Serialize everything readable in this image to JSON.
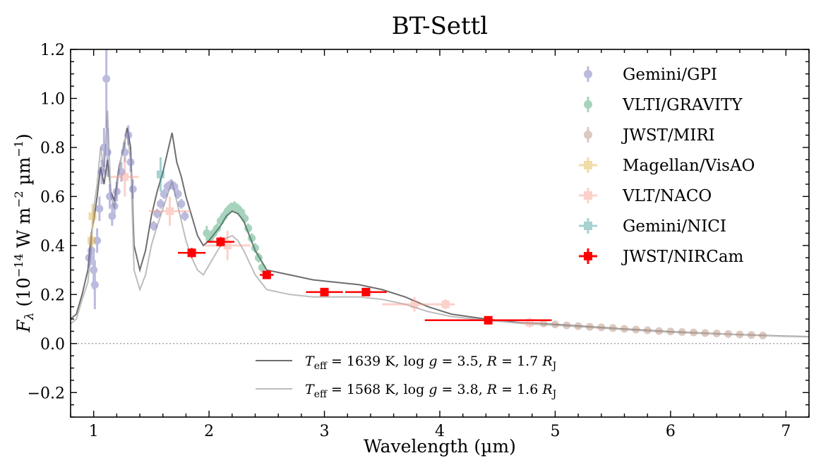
{
  "chart_data": {
    "type": "scatter",
    "title": "BT-Settl",
    "xlabel": "Wavelength (µm)",
    "ylabel_parts": {
      "symbol": "F",
      "subscript": "λ",
      "open": " (10",
      "exponent": "−14",
      "units": " W m",
      "exp2": "−2",
      "units2": " µm",
      "exp3": "−1",
      "close": ")"
    },
    "xlim": [
      0.8,
      7.2
    ],
    "ylim": [
      -0.3,
      1.2
    ],
    "xticks": [
      1,
      2,
      3,
      4,
      5,
      6,
      7
    ],
    "yticks": [
      -0.2,
      0.0,
      0.2,
      0.4,
      0.6,
      0.8,
      1.0,
      1.2
    ],
    "ytick_labels": [
      "−0.2",
      "0.0",
      "0.2",
      "0.4",
      "0.6",
      "0.8",
      "1.0",
      "1.2"
    ],
    "grid": false,
    "zero_line": true,
    "legend_position": "upper-right",
    "series": [
      {
        "name": "Gemini/GPI",
        "color": "#6b69b8",
        "marker": "circle",
        "points": [
          [
            0.96,
            0.35,
            0.04
          ],
          [
            0.98,
            0.38,
            0.06
          ],
          [
            1.0,
            0.3,
            0.08
          ],
          [
            1.01,
            0.24,
            0.1
          ],
          [
            1.03,
            0.42,
            0.05
          ],
          [
            1.05,
            0.55,
            0.05
          ],
          [
            1.07,
            0.7,
            0.05
          ],
          [
            1.09,
            0.8,
            0.08
          ],
          [
            1.11,
            1.08,
            0.2
          ],
          [
            1.12,
            0.78,
            0.1
          ],
          [
            1.14,
            0.6,
            0.05
          ],
          [
            1.16,
            0.52,
            0.04
          ],
          [
            1.18,
            0.56,
            0.04
          ],
          [
            1.2,
            0.62,
            0.04
          ],
          [
            1.24,
            0.7,
            0.04
          ],
          [
            1.27,
            0.78,
            0.04
          ],
          [
            1.3,
            0.85,
            0.04
          ],
          [
            1.32,
            0.74,
            0.04
          ],
          [
            1.34,
            0.63,
            0.04
          ],
          [
            1.52,
            0.48,
            0.02
          ],
          [
            1.55,
            0.53,
            0.02
          ],
          [
            1.58,
            0.57,
            0.02
          ],
          [
            1.61,
            0.61,
            0.02
          ],
          [
            1.64,
            0.64,
            0.02
          ],
          [
            1.67,
            0.65,
            0.02
          ],
          [
            1.7,
            0.64,
            0.02
          ],
          [
            1.73,
            0.61,
            0.02
          ],
          [
            1.76,
            0.57,
            0.02
          ],
          [
            1.79,
            0.52,
            0.02
          ]
        ]
      },
      {
        "name": "VLTI/GRAVITY",
        "color": "#3e9e6e",
        "marker": "circle",
        "points": [
          [
            1.98,
            0.45,
            0.03
          ],
          [
            2.01,
            0.43,
            0.02
          ],
          [
            2.04,
            0.45,
            0.02
          ],
          [
            2.07,
            0.47,
            0.02
          ],
          [
            2.1,
            0.5,
            0.02
          ],
          [
            2.13,
            0.52,
            0.02
          ],
          [
            2.16,
            0.54,
            0.02
          ],
          [
            2.19,
            0.555,
            0.02
          ],
          [
            2.22,
            0.56,
            0.02
          ],
          [
            2.25,
            0.55,
            0.02
          ],
          [
            2.28,
            0.535,
            0.02
          ],
          [
            2.31,
            0.51,
            0.02
          ],
          [
            2.34,
            0.47,
            0.02
          ],
          [
            2.37,
            0.43,
            0.02
          ],
          [
            2.4,
            0.39,
            0.02
          ],
          [
            2.43,
            0.35,
            0.02
          ],
          [
            2.46,
            0.31,
            0.02
          ]
        ]
      },
      {
        "name": "JWST/MIRI",
        "color": "#b08a76",
        "marker": "circle",
        "points": [
          [
            4.9,
            0.082,
            0.004
          ],
          [
            5.0,
            0.078,
            0.004
          ],
          [
            5.1,
            0.074,
            0.004
          ],
          [
            5.2,
            0.071,
            0.004
          ],
          [
            5.3,
            0.068,
            0.004
          ],
          [
            5.4,
            0.066,
            0.004
          ],
          [
            5.5,
            0.063,
            0.004
          ],
          [
            5.6,
            0.06,
            0.004
          ],
          [
            5.7,
            0.057,
            0.004
          ],
          [
            5.8,
            0.054,
            0.004
          ],
          [
            5.9,
            0.051,
            0.004
          ],
          [
            6.0,
            0.049,
            0.004
          ],
          [
            6.1,
            0.047,
            0.004
          ],
          [
            6.2,
            0.045,
            0.004
          ],
          [
            6.3,
            0.043,
            0.004
          ],
          [
            6.4,
            0.041,
            0.004
          ],
          [
            6.5,
            0.039,
            0.004
          ],
          [
            6.6,
            0.037,
            0.004
          ],
          [
            6.7,
            0.035,
            0.004
          ],
          [
            6.8,
            0.033,
            0.004
          ]
        ]
      },
      {
        "name": "Magellan/VisAO",
        "color": "#e2b13c",
        "marker": "square",
        "points": [
          [
            0.98,
            0.42,
            0.03,
            0.02
          ],
          [
            0.99,
            0.52,
            0.05,
            0.02
          ]
        ]
      },
      {
        "name": "VLT/NACO",
        "color": "#f79a8c",
        "marker": "square",
        "points": [
          [
            1.27,
            0.68,
            0.08,
            0.12
          ],
          [
            1.66,
            0.54,
            0.06,
            0.18
          ],
          [
            2.16,
            0.4,
            0.06,
            0.2
          ],
          [
            3.78,
            0.16,
            0.03,
            0.28
          ],
          [
            4.05,
            0.16,
            0.02,
            0.08
          ],
          [
            4.78,
            0.085,
            0.02,
            0.1
          ]
        ]
      },
      {
        "name": "Gemini/NICI",
        "color": "#3f9b9b",
        "marker": "square",
        "points": [
          [
            1.58,
            0.69,
            0.07,
            0.03
          ]
        ]
      },
      {
        "name": "JWST/NIRCam",
        "color": "#ff0000",
        "marker": "square",
        "points": [
          [
            1.85,
            0.37,
            0.02,
            0.12
          ],
          [
            2.1,
            0.415,
            0.02,
            0.12
          ],
          [
            2.5,
            0.28,
            0.015,
            0.06
          ],
          [
            3.0,
            0.21,
            0.01,
            0.16
          ],
          [
            3.36,
            0.21,
            0.01,
            0.18
          ],
          [
            4.42,
            0.095,
            0.005,
            0.55
          ]
        ]
      }
    ],
    "models": [
      {
        "label_parts": {
          "t": "T",
          "teff_sub": "eff",
          "t_val": " = 1639 K, log ",
          "g": "g",
          "g_val": " = 3.5, ",
          "r": "R",
          "r_val": " = 1.7 ",
          "rj": "R",
          "rj_sub": "J"
        },
        "color": "#6e6e6e",
        "spectrum": [
          [
            0.8,
            0.1
          ],
          [
            0.85,
            0.12
          ],
          [
            0.9,
            0.2
          ],
          [
            0.95,
            0.3
          ],
          [
            0.98,
            0.45
          ],
          [
            1.0,
            0.5
          ],
          [
            1.03,
            0.6
          ],
          [
            1.06,
            0.72
          ],
          [
            1.09,
            0.65
          ],
          [
            1.12,
            0.75
          ],
          [
            1.15,
            0.62
          ],
          [
            1.18,
            0.58
          ],
          [
            1.22,
            0.72
          ],
          [
            1.26,
            0.8
          ],
          [
            1.29,
            0.88
          ],
          [
            1.32,
            0.8
          ],
          [
            1.35,
            0.4
          ],
          [
            1.4,
            0.3
          ],
          [
            1.45,
            0.38
          ],
          [
            1.5,
            0.52
          ],
          [
            1.55,
            0.62
          ],
          [
            1.6,
            0.7
          ],
          [
            1.65,
            0.8
          ],
          [
            1.68,
            0.86
          ],
          [
            1.72,
            0.74
          ],
          [
            1.76,
            0.68
          ],
          [
            1.8,
            0.6
          ],
          [
            1.85,
            0.52
          ],
          [
            1.9,
            0.44
          ],
          [
            1.95,
            0.4
          ],
          [
            2.0,
            0.42
          ],
          [
            2.05,
            0.45
          ],
          [
            2.1,
            0.48
          ],
          [
            2.15,
            0.52
          ],
          [
            2.2,
            0.54
          ],
          [
            2.25,
            0.53
          ],
          [
            2.3,
            0.5
          ],
          [
            2.4,
            0.38
          ],
          [
            2.5,
            0.3
          ],
          [
            2.7,
            0.28
          ],
          [
            2.9,
            0.26
          ],
          [
            3.1,
            0.25
          ],
          [
            3.3,
            0.24
          ],
          [
            3.5,
            0.22
          ],
          [
            3.7,
            0.19
          ],
          [
            3.9,
            0.15
          ],
          [
            4.1,
            0.12
          ],
          [
            4.4,
            0.1
          ],
          [
            4.7,
            0.085
          ],
          [
            5.0,
            0.078
          ],
          [
            5.5,
            0.062
          ],
          [
            6.0,
            0.048
          ],
          [
            6.5,
            0.038
          ],
          [
            7.0,
            0.03
          ],
          [
            7.2,
            0.028
          ]
        ]
      },
      {
        "label_parts": {
          "t": "T",
          "teff_sub": "eff",
          "t_val": " = 1568 K, log ",
          "g": "g",
          "g_val": " = 3.8, ",
          "r": "R",
          "r_val": " = 1.6 ",
          "rj": "R",
          "rj_sub": "J"
        },
        "color": "#bdbdbd",
        "spectrum": [
          [
            0.8,
            0.08
          ],
          [
            0.85,
            0.1
          ],
          [
            0.9,
            0.18
          ],
          [
            0.95,
            0.25
          ],
          [
            0.98,
            0.4
          ],
          [
            1.0,
            0.55
          ],
          [
            1.03,
            0.65
          ],
          [
            1.06,
            0.8
          ],
          [
            1.09,
            0.7
          ],
          [
            1.12,
            0.95
          ],
          [
            1.15,
            0.6
          ],
          [
            1.18,
            0.55
          ],
          [
            1.22,
            0.7
          ],
          [
            1.26,
            0.82
          ],
          [
            1.29,
            0.86
          ],
          [
            1.32,
            0.75
          ],
          [
            1.35,
            0.3
          ],
          [
            1.4,
            0.22
          ],
          [
            1.45,
            0.28
          ],
          [
            1.5,
            0.4
          ],
          [
            1.55,
            0.48
          ],
          [
            1.6,
            0.55
          ],
          [
            1.65,
            0.62
          ],
          [
            1.68,
            0.66
          ],
          [
            1.72,
            0.58
          ],
          [
            1.76,
            0.5
          ],
          [
            1.8,
            0.42
          ],
          [
            1.85,
            0.35
          ],
          [
            1.9,
            0.3
          ],
          [
            1.95,
            0.28
          ],
          [
            2.0,
            0.32
          ],
          [
            2.05,
            0.36
          ],
          [
            2.1,
            0.4
          ],
          [
            2.15,
            0.43
          ],
          [
            2.2,
            0.44
          ],
          [
            2.25,
            0.42
          ],
          [
            2.3,
            0.38
          ],
          [
            2.4,
            0.28
          ],
          [
            2.5,
            0.22
          ],
          [
            2.7,
            0.2
          ],
          [
            2.9,
            0.19
          ],
          [
            3.1,
            0.19
          ],
          [
            3.3,
            0.19
          ],
          [
            3.5,
            0.18
          ],
          [
            3.7,
            0.16
          ],
          [
            3.9,
            0.13
          ],
          [
            4.1,
            0.11
          ],
          [
            4.4,
            0.095
          ],
          [
            4.7,
            0.082
          ],
          [
            5.0,
            0.075
          ],
          [
            5.5,
            0.06
          ],
          [
            6.0,
            0.046
          ],
          [
            6.5,
            0.037
          ],
          [
            7.0,
            0.029
          ],
          [
            7.2,
            0.027
          ]
        ]
      }
    ]
  }
}
